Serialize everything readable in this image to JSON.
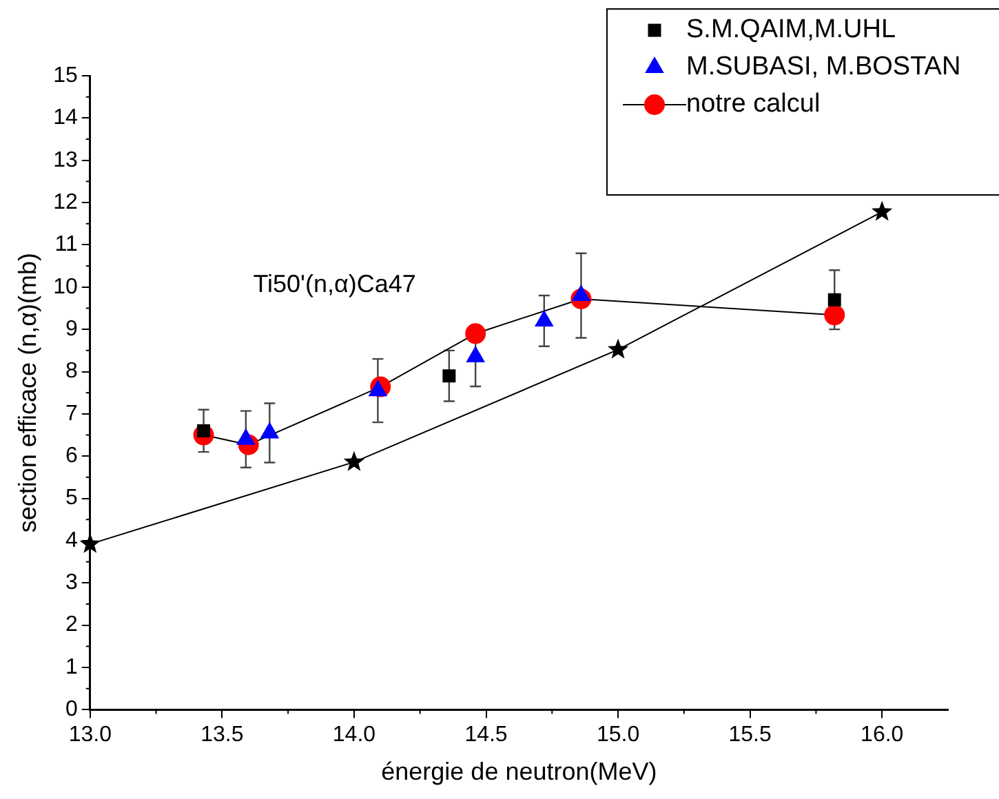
{
  "chart_data": {
    "type": "scatter",
    "xlabel": "énergie de neutron(MeV)",
    "ylabel": "section efficace (n,α)(mb)",
    "annotations": [
      "Ti50'(n,α)Ca47"
    ],
    "xlim": [
      13,
      16.25
    ],
    "xticks": [
      {
        "value": 13,
        "label": "13.0"
      },
      {
        "value": 13.5,
        "label": "13.5"
      },
      {
        "value": 14,
        "label": "14.0"
      },
      {
        "value": 14.5,
        "label": "14.5"
      },
      {
        "value": 15,
        "label": "15.0"
      },
      {
        "value": 15.5,
        "label": "15.5"
      },
      {
        "value": 16,
        "label": "16.0"
      }
    ],
    "ylim": [
      0,
      15
    ],
    "yticks": [
      0,
      1,
      2,
      3,
      4,
      5,
      6,
      7,
      8,
      9,
      10,
      11,
      12,
      13,
      14,
      15
    ],
    "grid": false,
    "legend": "top right",
    "series": [
      {
        "name": "S.M.QAIM,M.UHL",
        "marker": "square",
        "color": "#000000",
        "x": [
          13.43,
          14.36,
          15.82
        ],
        "values": [
          6.6,
          7.9,
          9.7
        ],
        "errors": [
          0.5,
          0.6,
          0.7
        ]
      },
      {
        "name": "M.SUBASI, M.BOSTAN",
        "marker": "triangle",
        "color": "#0000ff",
        "x": [
          13.59,
          13.68,
          14.09,
          14.46,
          14.72,
          14.86
        ],
        "values": [
          6.4,
          6.55,
          7.55,
          8.35,
          9.2,
          9.8
        ],
        "errors": [
          0.67,
          0.7,
          0.75,
          0.7,
          0.6,
          1.0
        ]
      },
      {
        "name": "notre calcul",
        "type": "line",
        "marker": "circle",
        "color": "#ff0000",
        "x": [
          13.43,
          13.6,
          14.1,
          14.46,
          14.86,
          15.82
        ],
        "values": [
          6.5,
          6.27,
          7.64,
          8.9,
          9.72,
          9.34
        ]
      },
      {
        "type": "line",
        "marker": "star",
        "color": "#000000",
        "x": [
          13,
          14,
          15,
          16
        ],
        "values": [
          3.92,
          5.86,
          8.52,
          11.78
        ]
      }
    ]
  }
}
